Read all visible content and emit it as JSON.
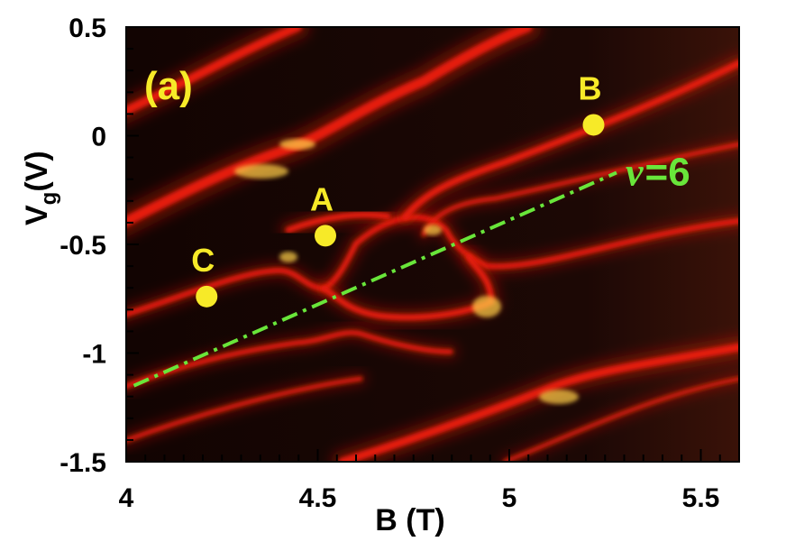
{
  "chart_data": {
    "type": "heatmap",
    "panel_label": "(a)",
    "xlabel": "B (T)",
    "ylabel_main": "V",
    "ylabel_sub": "g",
    "ylabel_unit": "(V)",
    "xlim": [
      4.0,
      5.6
    ],
    "ylim": [
      -1.5,
      0.5
    ],
    "x_ticks": [
      {
        "value": 4.0,
        "label": "4"
      },
      {
        "value": 4.5,
        "label": "4.5"
      },
      {
        "value": 5.0,
        "label": "5"
      },
      {
        "value": 5.5,
        "label": "5.5"
      }
    ],
    "y_ticks": [
      {
        "value": 0.5,
        "label": "0.5"
      },
      {
        "value": 0.0,
        "label": "0"
      },
      {
        "value": -0.5,
        "label": "-0.5"
      },
      {
        "value": -1.0,
        "label": "-1"
      },
      {
        "value": -1.5,
        "label": "-1.5"
      }
    ],
    "points": [
      {
        "label": "A",
        "x": 4.52,
        "y": -0.46
      },
      {
        "label": "B",
        "x": 5.22,
        "y": 0.05
      },
      {
        "label": "C",
        "x": 4.21,
        "y": -0.74
      }
    ],
    "filling_factor_line": {
      "nu_symbol": "ν",
      "label_value": "=6",
      "x": [
        4.02,
        5.28
      ],
      "y": [
        -1.15,
        -0.17
      ],
      "color": "#69e63a"
    },
    "colors": {
      "background": "#1a0703",
      "line": "#e51a0c",
      "highlight": "#ffd24a",
      "marker": "#f7ea28"
    },
    "grid": false,
    "legend": "none"
  }
}
